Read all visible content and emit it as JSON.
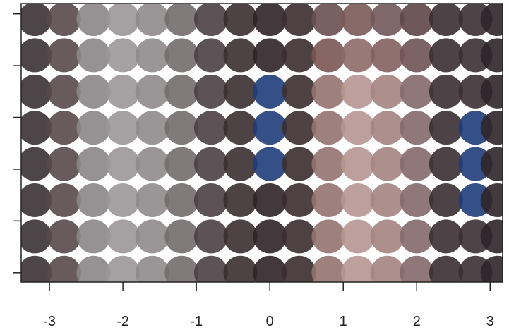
{
  "chart_data": {
    "type": "scatter",
    "x": [
      -3.2,
      -2.8,
      -2.4,
      -2.0,
      -1.6,
      -1.2,
      -0.8,
      -0.4,
      0,
      0.4,
      0.8,
      1.2,
      1.6,
      2.0,
      2.4,
      2.8,
      3.1,
      -3.2,
      -2.8,
      -2.4,
      -2.0,
      -1.6,
      -1.2,
      -0.8,
      -0.4,
      0,
      0.4,
      0.8,
      1.2,
      1.6,
      2.0,
      2.4,
      2.8,
      3.1,
      -3.2,
      -2.8,
      -2.4,
      -2.0,
      -1.6,
      -1.2,
      -0.8,
      -0.4,
      0,
      0.4,
      0.8,
      1.2,
      1.6,
      2.0,
      2.4,
      2.8,
      3.1,
      -3.2,
      -2.8,
      -2.4,
      -2.0,
      -1.6,
      -1.2,
      -0.8,
      -0.4,
      0,
      0.4,
      0.8,
      1.2,
      1.6,
      2.0,
      2.4,
      2.8,
      3.1,
      -3.2,
      -2.8,
      -2.4,
      -2.0,
      -1.6,
      -1.2,
      -0.8,
      -0.4,
      0,
      0.4,
      0.8,
      1.2,
      1.6,
      2.0,
      2.4,
      2.8,
      3.1,
      -3.2,
      -2.8,
      -2.4,
      -2.0,
      -1.6,
      -1.2,
      -0.8,
      -0.4,
      0,
      0.4,
      0.8,
      1.2,
      1.6,
      2.0,
      2.4,
      2.8,
      3.1,
      -3.2,
      -2.8,
      -2.4,
      -2.0,
      -1.6,
      -1.2,
      -0.8,
      -0.4,
      0,
      0.4,
      0.8,
      1.2,
      1.6,
      2.0,
      2.4,
      2.8,
      3.1,
      -3.2,
      -2.8,
      -2.4,
      -2.0,
      -1.6,
      -1.2,
      -0.8,
      -0.4,
      0,
      0.4,
      0.8,
      1.2,
      1.6,
      2.0,
      2.4,
      2.8,
      3.1
    ],
    "y": [
      0,
      0,
      0,
      0,
      0,
      0,
      0,
      0,
      0,
      0,
      0,
      0,
      0,
      0,
      0,
      0,
      0,
      0.7,
      0.7,
      0.7,
      0.7,
      0.7,
      0.7,
      0.7,
      0.7,
      0.7,
      0.7,
      0.7,
      0.7,
      0.7,
      0.7,
      0.7,
      0.7,
      0.7,
      1.4,
      1.4,
      1.4,
      1.4,
      1.4,
      1.4,
      1.4,
      1.4,
      1.4,
      1.4,
      1.4,
      1.4,
      1.4,
      1.4,
      1.4,
      1.4,
      1.4,
      2.1,
      2.1,
      2.1,
      2.1,
      2.1,
      2.1,
      2.1,
      2.1,
      2.1,
      2.1,
      2.1,
      2.1,
      2.1,
      2.1,
      2.1,
      2.1,
      2.1,
      2.8,
      2.8,
      2.8,
      2.8,
      2.8,
      2.8,
      2.8,
      2.8,
      2.8,
      2.8,
      2.8,
      2.8,
      2.8,
      2.8,
      2.8,
      2.8,
      2.8,
      3.5,
      3.5,
      3.5,
      3.5,
      3.5,
      3.5,
      3.5,
      3.5,
      3.5,
      3.5,
      3.5,
      3.5,
      3.5,
      3.5,
      3.5,
      3.5,
      3.5,
      4.2,
      4.2,
      4.2,
      4.2,
      4.2,
      4.2,
      4.2,
      4.2,
      4.2,
      4.2,
      4.2,
      4.2,
      4.2,
      4.2,
      4.2,
      4.2,
      4.2,
      4.9,
      4.9,
      4.9,
      4.9,
      4.9,
      4.9,
      4.9,
      4.9,
      4.9,
      4.9,
      4.9,
      4.9,
      4.9,
      4.9,
      4.9,
      4.9,
      4.9
    ],
    "colors": [
      "#3b3134",
      "#57494c",
      "#8b8687",
      "#9b9798",
      "#8f8b8c",
      "#726c6d",
      "#4b3f42",
      "#3a2d30",
      "#2f2327",
      "#3b2c2f",
      "#94736f",
      "#b69694",
      "#a4837f",
      "#84686a",
      "#3a2e31",
      "#3b2f32",
      "#2f2529",
      "#3b3134",
      "#57494c",
      "#8b8687",
      "#9b9798",
      "#8f8b8c",
      "#726c6d",
      "#4b3f42",
      "#3a2d30",
      "#2f2327",
      "#3b2c2f",
      "#94736f",
      "#b69694",
      "#a4837f",
      "#84686a",
      "#3a2e31",
      "#3b2f32",
      "#2f2529",
      "#3b3134",
      "#57494c",
      "#8b8687",
      "#9b9798",
      "#8f8b8c",
      "#726c6d",
      "#4b3f42",
      "#3a2d30",
      "#2f2327",
      "#3b2c2f",
      "#94736f",
      "#b69694",
      "#a4837f",
      "#84686a",
      "#3a2e31",
      "#1f3d7a",
      "#2f2529",
      "#3b3134",
      "#57494c",
      "#8b8687",
      "#9b9798",
      "#8f8b8c",
      "#726c6d",
      "#4b3f42",
      "#3a2d30",
      "#1f3d7a",
      "#3b2c2f",
      "#94736f",
      "#b69694",
      "#a4837f",
      "#84686a",
      "#3a2e31",
      "#1f3d7a",
      "#2f2529",
      "#3b3134",
      "#57494c",
      "#8b8687",
      "#9b9798",
      "#8f8b8c",
      "#726c6d",
      "#4b3f42",
      "#3a2d30",
      "#1f3d7a",
      "#3b2c2f",
      "#94736f",
      "#b69694",
      "#a4837f",
      "#84686a",
      "#3a2e31",
      "#1f3d7a",
      "#2f2529",
      "#3b3134",
      "#57494c",
      "#8b8687",
      "#9b9798",
      "#8f8b8c",
      "#726c6d",
      "#4b3f42",
      "#3a2d30",
      "#1f3d7a",
      "#3b2c2f",
      "#94736f",
      "#b69694",
      "#a4837f",
      "#84686a",
      "#3a2e31",
      "#3b2f32",
      "#2f2529",
      "#3b3134",
      "#57494c",
      "#8b8687",
      "#9b9798",
      "#8f8b8c",
      "#726c6d",
      "#4b3f42",
      "#3a2d30",
      "#2f2327",
      "#3b2c2f",
      "#7a5553",
      "#8e6a68",
      "#84605e",
      "#6e5254",
      "#3a2e31",
      "#3b2f32",
      "#2f2529",
      "#3b3134",
      "#57494c",
      "#8b8687",
      "#9b9798",
      "#8f8b8c",
      "#726c6d",
      "#4b3f42",
      "#3a2d30",
      "#2f2327",
      "#3b2c2f",
      "#6a5052",
      "#7a5a58",
      "#72585a",
      "#5e4648",
      "#3a2e31",
      "#3b2f32",
      "#2f2529"
    ],
    "xlim": [
      -3.385,
      3.17
    ],
    "ylim": [
      -0.18,
      5.2
    ],
    "xticks": [
      -3,
      -2,
      -1,
      0,
      1,
      2,
      3
    ],
    "yticks": [
      0,
      1,
      2,
      3,
      4,
      5
    ]
  }
}
